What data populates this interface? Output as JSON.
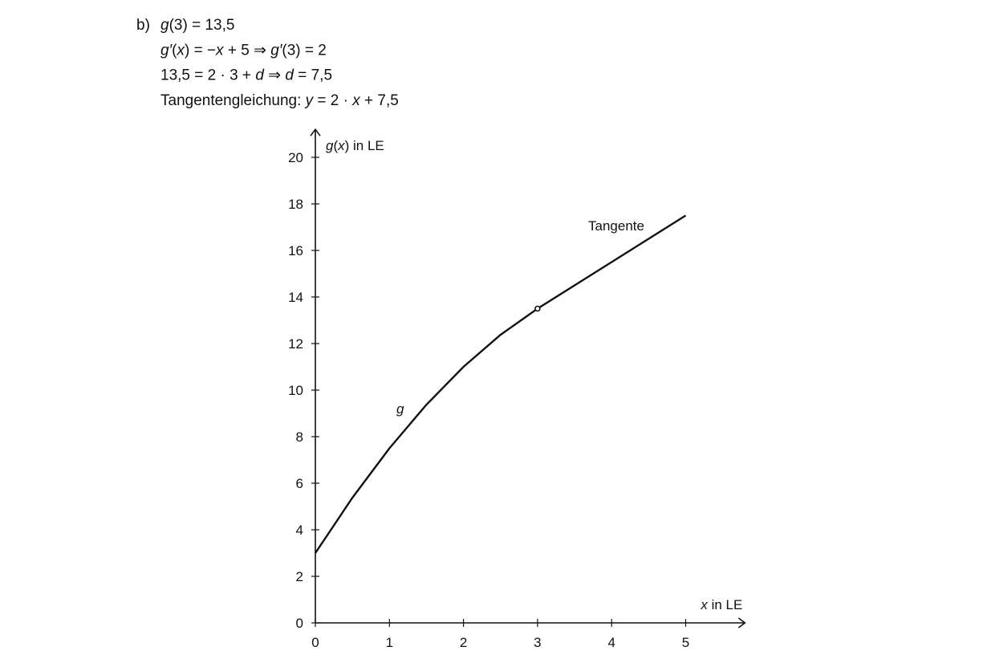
{
  "solution": {
    "label": "b)",
    "lines": [
      [
        {
          "text": "g",
          "italic": true
        },
        {
          "text": "(3) = 13,5",
          "italic": false
        }
      ],
      [
        {
          "text": "g′",
          "italic": true
        },
        {
          "text": "(",
          "italic": false
        },
        {
          "text": "x",
          "italic": true
        },
        {
          "text": ") = −",
          "italic": false
        },
        {
          "text": "x",
          "italic": true
        },
        {
          "text": " + 5  ⇒  ",
          "italic": false
        },
        {
          "text": "g′",
          "italic": true
        },
        {
          "text": "(3) = 2",
          "italic": false
        }
      ],
      [
        {
          "text": "13,5 = 2 · 3 + ",
          "italic": false
        },
        {
          "text": "d",
          "italic": true
        },
        {
          "text": "  ⇒  ",
          "italic": false
        },
        {
          "text": "d",
          "italic": true
        },
        {
          "text": " = 7,5",
          "italic": false
        }
      ],
      [
        {
          "text": "Tangentengleichung: ",
          "italic": false
        },
        {
          "text": "y",
          "italic": true
        },
        {
          "text": " = 2 · ",
          "italic": false
        },
        {
          "text": "x",
          "italic": true
        },
        {
          "text": " + 7,5",
          "italic": false
        }
      ]
    ]
  },
  "chart_data": {
    "type": "line",
    "y_label": [
      {
        "text": "g",
        "italic": true
      },
      {
        "text": "(",
        "italic": false
      },
      {
        "text": "x",
        "italic": true
      },
      {
        "text": ") in LE",
        "italic": false
      }
    ],
    "x_label": [
      {
        "text": "x",
        "italic": true
      },
      {
        "text": " in LE",
        "italic": false
      }
    ],
    "xlim": [
      0,
      5.8
    ],
    "ylim": [
      0,
      21.2
    ],
    "xticks": [
      0,
      1,
      2,
      3,
      4,
      5
    ],
    "yticks": [
      0,
      2,
      4,
      6,
      8,
      10,
      12,
      14,
      16,
      18,
      20
    ],
    "series": [
      {
        "label": "g",
        "label_italic": true,
        "color": "#111111",
        "x": [
          0,
          0.5,
          1,
          1.5,
          2,
          2.5,
          3
        ],
        "values": [
          3,
          5.375,
          7.5,
          9.375,
          11,
          12.375,
          13.5
        ]
      },
      {
        "label": "Tangente",
        "label_italic": false,
        "color": "#111111",
        "x": [
          3,
          5
        ],
        "values": [
          13.5,
          17.5
        ]
      }
    ],
    "point": {
      "x": 3,
      "y": 13.5
    }
  }
}
